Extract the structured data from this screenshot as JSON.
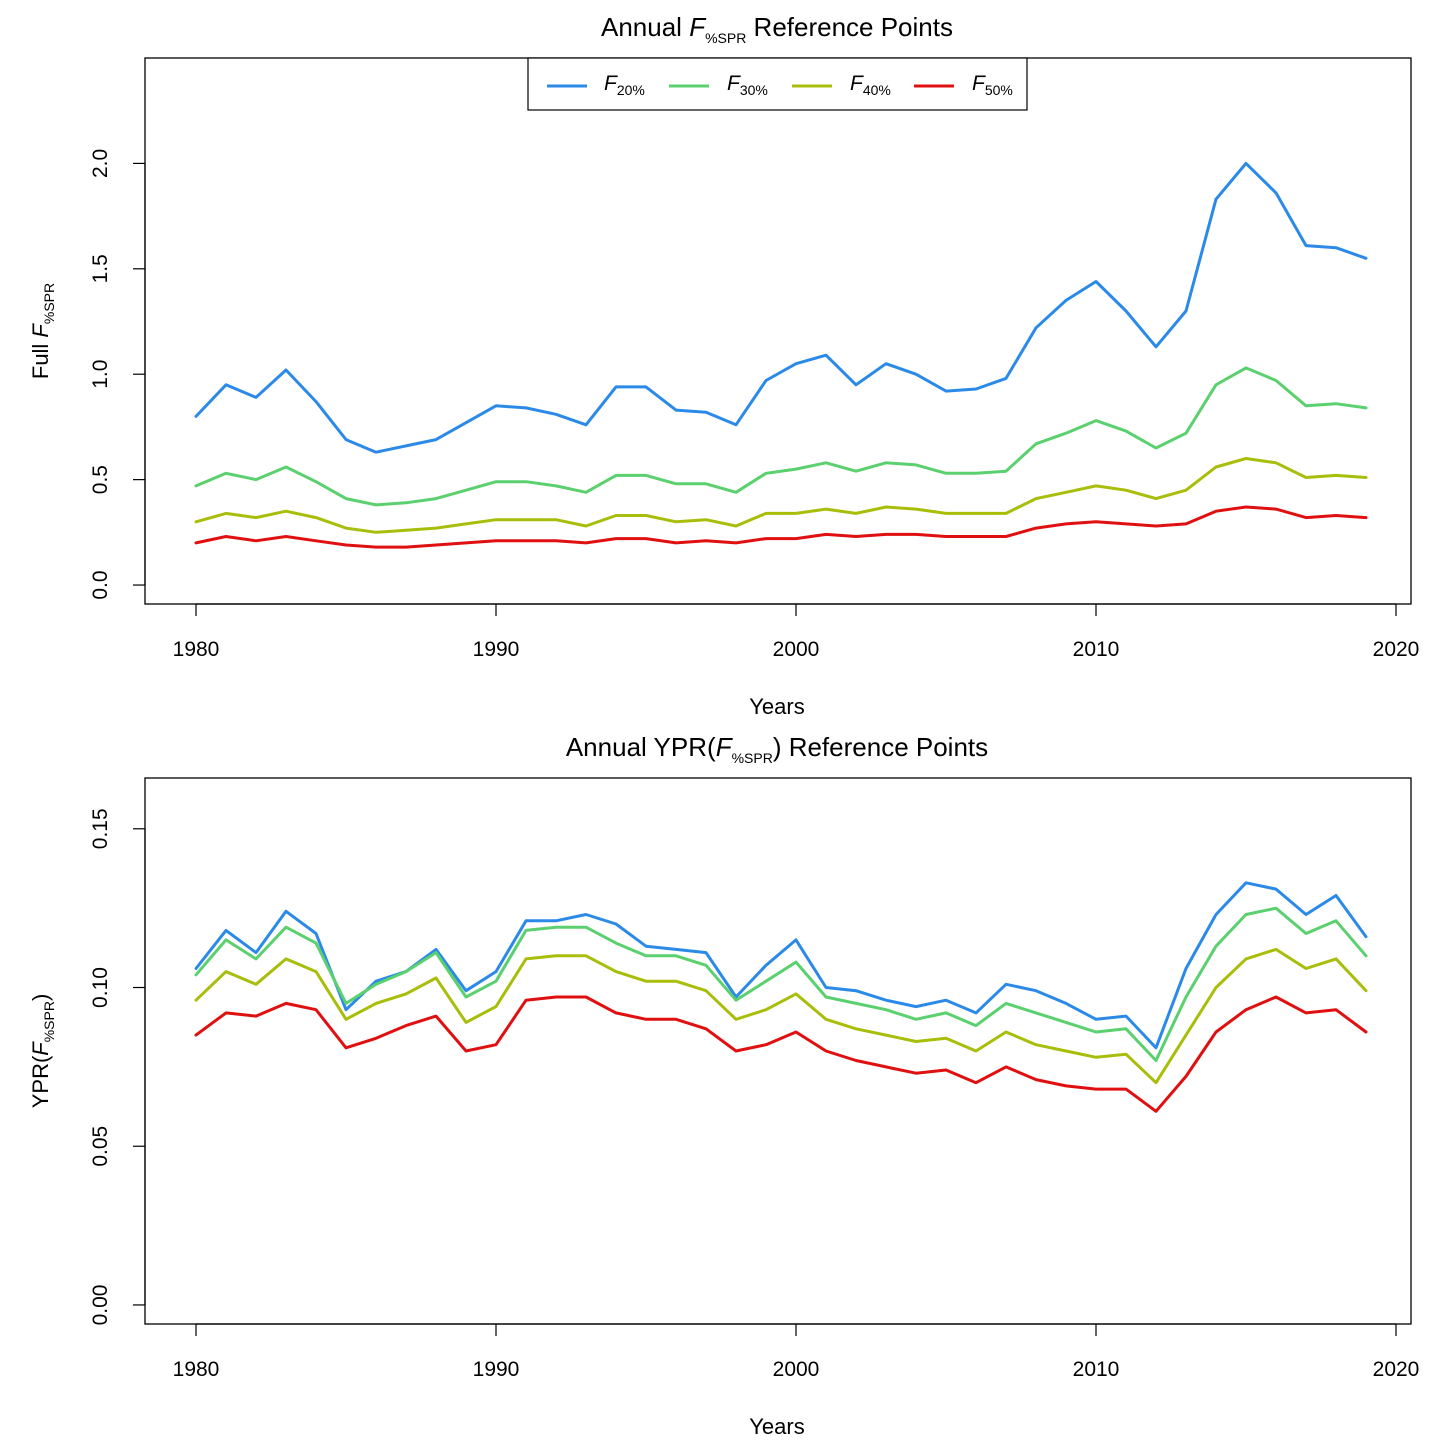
{
  "chart_data": [
    {
      "type": "line",
      "title": {
        "prefix": "Annual ",
        "var": "F",
        "sub": "%SPR",
        "suffix": " Reference Points"
      },
      "xlabel": "Years",
      "ylabel": {
        "prefix": "Full ",
        "var": "F",
        "sub": "%SPR",
        "suffix": ""
      },
      "xlim": [
        1978.3,
        2020.5
      ],
      "ylim": [
        -0.09,
        2.5
      ],
      "x_ticks": [
        1980,
        1990,
        2000,
        2010,
        2020
      ],
      "y_ticks": [
        0.0,
        0.5,
        1.0,
        1.5,
        2.0
      ],
      "y_tick_labels": [
        "0.0",
        "0.5",
        "1.0",
        "1.5",
        "2.0"
      ],
      "legend": {
        "placement": "top-center",
        "entries": [
          {
            "var": "F",
            "sub": "20%"
          },
          {
            "var": "F",
            "sub": "30%"
          },
          {
            "var": "F",
            "sub": "40%"
          },
          {
            "var": "F",
            "sub": "50%"
          }
        ]
      },
      "x": [
        1980,
        1981,
        1982,
        1983,
        1984,
        1985,
        1986,
        1987,
        1988,
        1989,
        1990,
        1991,
        1992,
        1993,
        1994,
        1995,
        1996,
        1997,
        1998,
        1999,
        2000,
        2001,
        2002,
        2003,
        2004,
        2005,
        2006,
        2007,
        2008,
        2009,
        2010,
        2011,
        2012,
        2013,
        2014,
        2015,
        2016,
        2017,
        2018,
        2019
      ],
      "series": [
        {
          "color": "#2b8ae8",
          "values": [
            0.8,
            0.95,
            0.89,
            1.02,
            0.87,
            0.69,
            0.63,
            0.66,
            0.69,
            0.77,
            0.85,
            0.84,
            0.81,
            0.76,
            0.94,
            0.94,
            0.83,
            0.82,
            0.76,
            0.97,
            1.05,
            1.09,
            0.95,
            1.05,
            1.0,
            0.92,
            0.93,
            0.98,
            1.22,
            1.35,
            1.44,
            1.3,
            1.13,
            1.3,
            1.83,
            2.0,
            1.86,
            1.61,
            1.6,
            1.55
          ]
        },
        {
          "color": "#5bd06e",
          "values": [
            0.47,
            0.53,
            0.5,
            0.56,
            0.49,
            0.41,
            0.38,
            0.39,
            0.41,
            0.45,
            0.49,
            0.49,
            0.47,
            0.44,
            0.52,
            0.52,
            0.48,
            0.48,
            0.44,
            0.53,
            0.55,
            0.58,
            0.54,
            0.58,
            0.57,
            0.53,
            0.53,
            0.54,
            0.67,
            0.72,
            0.78,
            0.73,
            0.65,
            0.72,
            0.95,
            1.03,
            0.97,
            0.85,
            0.86,
            0.84
          ]
        },
        {
          "color": "#a8be0a",
          "values": [
            0.3,
            0.34,
            0.32,
            0.35,
            0.32,
            0.27,
            0.25,
            0.26,
            0.27,
            0.29,
            0.31,
            0.31,
            0.31,
            0.28,
            0.33,
            0.33,
            0.3,
            0.31,
            0.28,
            0.34,
            0.34,
            0.36,
            0.34,
            0.37,
            0.36,
            0.34,
            0.34,
            0.34,
            0.41,
            0.44,
            0.47,
            0.45,
            0.41,
            0.45,
            0.56,
            0.6,
            0.58,
            0.51,
            0.52,
            0.51
          ]
        },
        {
          "color": "#e01010",
          "values": [
            0.2,
            0.23,
            0.21,
            0.23,
            0.21,
            0.19,
            0.18,
            0.18,
            0.19,
            0.2,
            0.21,
            0.21,
            0.21,
            0.2,
            0.22,
            0.22,
            0.2,
            0.21,
            0.2,
            0.22,
            0.22,
            0.24,
            0.23,
            0.24,
            0.24,
            0.23,
            0.23,
            0.23,
            0.27,
            0.29,
            0.3,
            0.29,
            0.28,
            0.29,
            0.35,
            0.37,
            0.36,
            0.32,
            0.33,
            0.32
          ]
        }
      ]
    },
    {
      "type": "line",
      "title": {
        "prefix": "Annual YPR(",
        "var": "F",
        "sub": "%SPR",
        "suffix": ") Reference Points"
      },
      "xlabel": "Years",
      "ylabel": {
        "prefix": "YPR(",
        "var": "F",
        "sub": "%SPR",
        "suffix": ")"
      },
      "xlim": [
        1978.3,
        2020.5
      ],
      "ylim": [
        -0.006,
        0.166
      ],
      "x_ticks": [
        1980,
        1990,
        2000,
        2010,
        2020
      ],
      "y_ticks": [
        0.0,
        0.05,
        0.1,
        0.15
      ],
      "y_tick_labels": [
        "0.00",
        "0.05",
        "0.10",
        "0.15"
      ],
      "x": [
        1980,
        1981,
        1982,
        1983,
        1984,
        1985,
        1986,
        1987,
        1988,
        1989,
        1990,
        1991,
        1992,
        1993,
        1994,
        1995,
        1996,
        1997,
        1998,
        1999,
        2000,
        2001,
        2002,
        2003,
        2004,
        2005,
        2006,
        2007,
        2008,
        2009,
        2010,
        2011,
        2012,
        2013,
        2014,
        2015,
        2016,
        2017,
        2018,
        2019
      ],
      "series": [
        {
          "color": "#2b8ae8",
          "values": [
            0.106,
            0.118,
            0.111,
            0.124,
            0.117,
            0.093,
            0.102,
            0.105,
            0.112,
            0.099,
            0.105,
            0.121,
            0.121,
            0.123,
            0.12,
            0.113,
            0.112,
            0.111,
            0.097,
            0.107,
            0.115,
            0.1,
            0.099,
            0.096,
            0.094,
            0.096,
            0.092,
            0.101,
            0.099,
            0.095,
            0.09,
            0.091,
            0.081,
            0.106,
            0.123,
            0.133,
            0.131,
            0.123,
            0.129,
            0.116
          ]
        },
        {
          "color": "#5bd06e",
          "values": [
            0.104,
            0.115,
            0.109,
            0.119,
            0.114,
            0.095,
            0.101,
            0.105,
            0.111,
            0.097,
            0.102,
            0.118,
            0.119,
            0.119,
            0.114,
            0.11,
            0.11,
            0.107,
            0.096,
            0.102,
            0.108,
            0.097,
            0.095,
            0.093,
            0.09,
            0.092,
            0.088,
            0.095,
            0.092,
            0.089,
            0.086,
            0.087,
            0.077,
            0.097,
            0.113,
            0.123,
            0.125,
            0.117,
            0.121,
            0.11
          ]
        },
        {
          "color": "#a8be0a",
          "values": [
            0.096,
            0.105,
            0.101,
            0.109,
            0.105,
            0.09,
            0.095,
            0.098,
            0.103,
            0.089,
            0.094,
            0.109,
            0.11,
            0.11,
            0.105,
            0.102,
            0.102,
            0.099,
            0.09,
            0.093,
            0.098,
            0.09,
            0.087,
            0.085,
            0.083,
            0.084,
            0.08,
            0.086,
            0.082,
            0.08,
            0.078,
            0.079,
            0.07,
            0.085,
            0.1,
            0.109,
            0.112,
            0.106,
            0.109,
            0.099
          ]
        },
        {
          "color": "#e01010",
          "values": [
            0.085,
            0.092,
            0.091,
            0.095,
            0.093,
            0.081,
            0.084,
            0.088,
            0.091,
            0.08,
            0.082,
            0.096,
            0.097,
            0.097,
            0.092,
            0.09,
            0.09,
            0.087,
            0.08,
            0.082,
            0.086,
            0.08,
            0.077,
            0.075,
            0.073,
            0.074,
            0.07,
            0.075,
            0.071,
            0.069,
            0.068,
            0.068,
            0.061,
            0.072,
            0.086,
            0.093,
            0.097,
            0.092,
            0.093,
            0.086
          ]
        }
      ]
    }
  ]
}
